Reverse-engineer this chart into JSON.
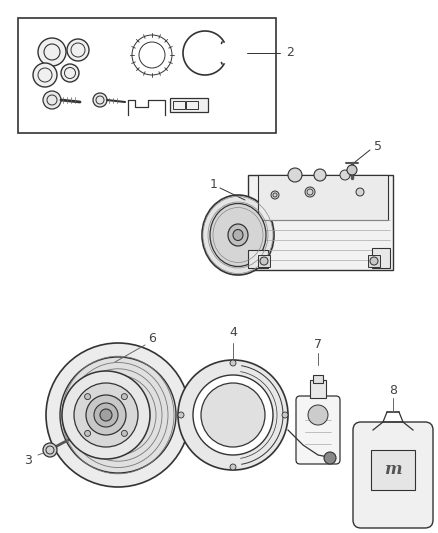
{
  "bg_color": "#ffffff",
  "line_color": "#333333",
  "figsize": [
    4.38,
    5.33
  ],
  "dpi": 100
}
